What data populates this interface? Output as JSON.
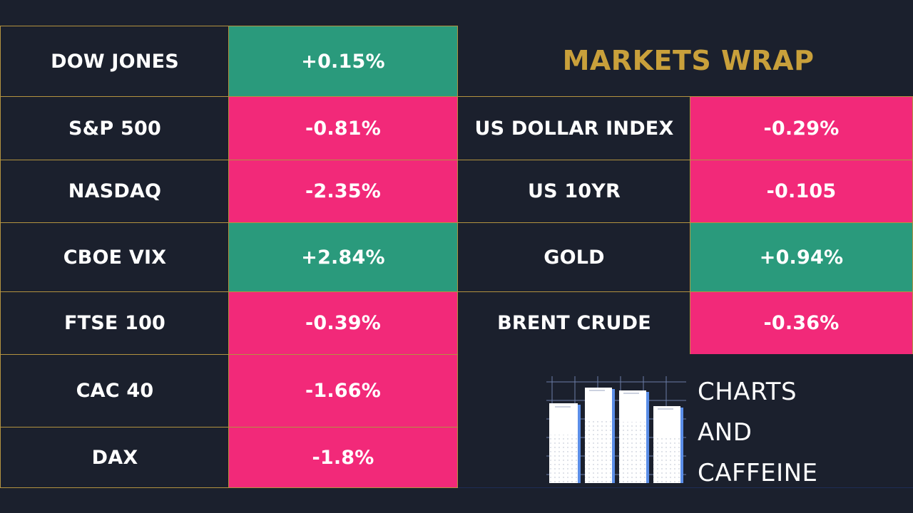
{
  "title": "MARKETS WRAP",
  "left_rows": [
    {
      "name": "DOW JONES",
      "value": "+0.15%",
      "direction": "up"
    },
    {
      "name": "S&P 500",
      "value": "-0.81%",
      "direction": "down"
    },
    {
      "name": "NASDAQ",
      "value": "-2.35%",
      "direction": "down"
    },
    {
      "name": "CBOE VIX",
      "value": "+2.84%",
      "direction": "up"
    },
    {
      "name": "FTSE 100",
      "value": "-0.39%",
      "direction": "down"
    },
    {
      "name": "CAC 40",
      "value": "-1.66%",
      "direction": "down"
    },
    {
      "name": "DAX",
      "value": "-1.8%",
      "direction": "down"
    }
  ],
  "right_rows": [
    {
      "name": "US DOLLAR INDEX",
      "value": "-0.29%",
      "direction": "down"
    },
    {
      "name": "US 10YR",
      "value": "-0.105",
      "direction": "down"
    },
    {
      "name": "GOLD",
      "value": "+0.94%",
      "direction": "up"
    },
    {
      "name": "BRENT CRUDE",
      "value": "-0.36%",
      "direction": "down"
    }
  ],
  "brand": {
    "line1": "CHARTS",
    "line2": "AND",
    "line3": "CAFFEINE",
    "icon": "bar-chart-logo-icon"
  },
  "colors": {
    "background": "#1b202d",
    "positive": "#2a9a7c",
    "negative": "#f22979",
    "border": "#b3923f",
    "title": "#c9a03b"
  }
}
